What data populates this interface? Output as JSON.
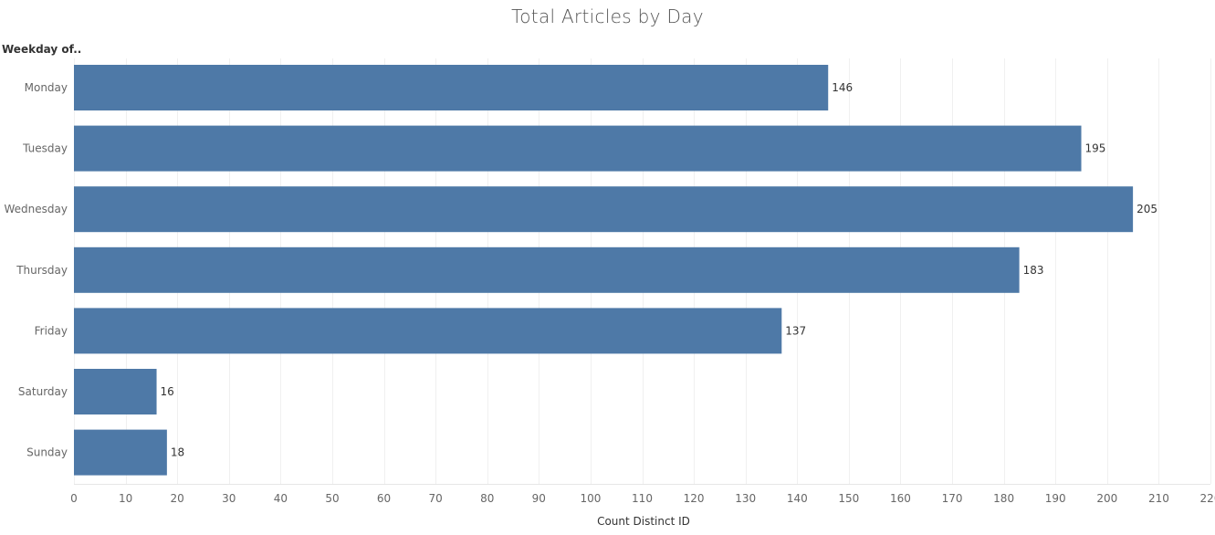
{
  "chart_data": {
    "type": "bar",
    "orientation": "horizontal",
    "title": "Total Articles by Day",
    "ylabel": "Weekday of..",
    "xlabel": "Count Distinct ID",
    "categories": [
      "Monday",
      "Tuesday",
      "Wednesday",
      "Thursday",
      "Friday",
      "Saturday",
      "Sunday"
    ],
    "values": [
      146,
      195,
      205,
      183,
      137,
      16,
      18
    ],
    "value_labels": [
      "146",
      "195",
      "205",
      "183",
      "137",
      "16",
      "18"
    ],
    "xlim": [
      0,
      220
    ],
    "x_ticks": [
      0,
      10,
      20,
      30,
      40,
      50,
      60,
      70,
      80,
      90,
      100,
      110,
      120,
      130,
      140,
      150,
      160,
      170,
      180,
      190,
      200,
      210,
      220
    ],
    "x_tick_labels": [
      "0",
      "10",
      "20",
      "30",
      "40",
      "50",
      "60",
      "70",
      "80",
      "90",
      "100",
      "110",
      "120",
      "130",
      "140",
      "150",
      "160",
      "170",
      "180",
      "190",
      "200",
      "210",
      "220"
    ],
    "grid": true,
    "legend": "none",
    "bar_color": "#4e79a7"
  }
}
